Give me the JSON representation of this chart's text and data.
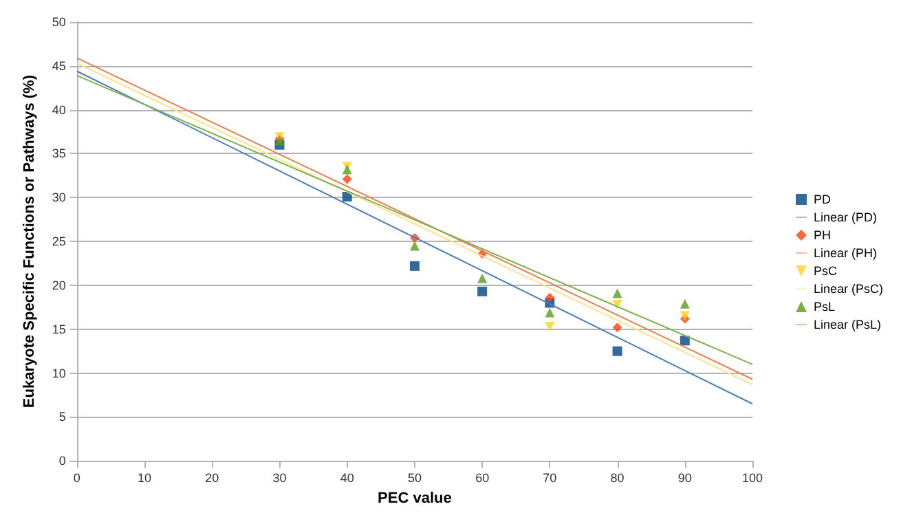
{
  "chart_data": {
    "type": "scatter",
    "xlabel": "PEC value",
    "ylabel": "Eukaryote Specific Functions or Pathways (%)",
    "xlim": [
      0,
      100
    ],
    "xticks": [
      0,
      10,
      20,
      30,
      40,
      50,
      60,
      70,
      80,
      90,
      100
    ],
    "ylim": [
      0,
      50
    ],
    "yticks": [
      0,
      5,
      10,
      15,
      20,
      25,
      30,
      35,
      40,
      45,
      50
    ],
    "grid": "y",
    "legend": "right",
    "series": [
      {
        "name": "PD",
        "color": "#004586",
        "marker": "square",
        "x": [
          30,
          40,
          50,
          60,
          70,
          80,
          90
        ],
        "values": [
          36,
          30.1,
          22.2,
          19.3,
          18,
          12.5,
          13.7
        ]
      },
      {
        "name": "Linear (PD)",
        "type": "line",
        "color": "#4a7ebb",
        "x": [
          0,
          100
        ],
        "values": [
          44.4,
          6.5
        ]
      },
      {
        "name": "PH",
        "color": "#ff420e",
        "marker": "diamond",
        "x": [
          30,
          40,
          50,
          60,
          70,
          80,
          90
        ],
        "values": [
          36.7,
          32.1,
          25.4,
          23.6,
          18.6,
          15.2,
          16.2
        ]
      },
      {
        "name": "Linear (PH)",
        "type": "line",
        "color": "#e8804f",
        "x": [
          0,
          100
        ],
        "values": [
          45.9,
          9.3
        ]
      },
      {
        "name": "PsC",
        "color": "#ffd320",
        "marker": "triangle-down",
        "x": [
          30,
          40,
          50,
          60,
          70,
          80,
          90
        ],
        "values": [
          36.9,
          33.5,
          null,
          null,
          15.3,
          17.8,
          16.5
        ]
      },
      {
        "name": "Linear (PsC)",
        "type": "line",
        "color": "#ffe38a",
        "x": [
          0,
          100
        ],
        "values": [
          45.3,
          8.7
        ]
      },
      {
        "name": "PsL",
        "color": "#579d1c",
        "marker": "triangle",
        "x": [
          30,
          40,
          50,
          60,
          70,
          80,
          90
        ],
        "values": [
          36.5,
          33.2,
          24.5,
          20.8,
          16.9,
          19.1,
          17.9
        ]
      },
      {
        "name": "Linear (PsL)",
        "type": "line",
        "color": "#7fb24a",
        "x": [
          0,
          100
        ],
        "values": [
          43.9,
          11.0
        ]
      }
    ]
  }
}
